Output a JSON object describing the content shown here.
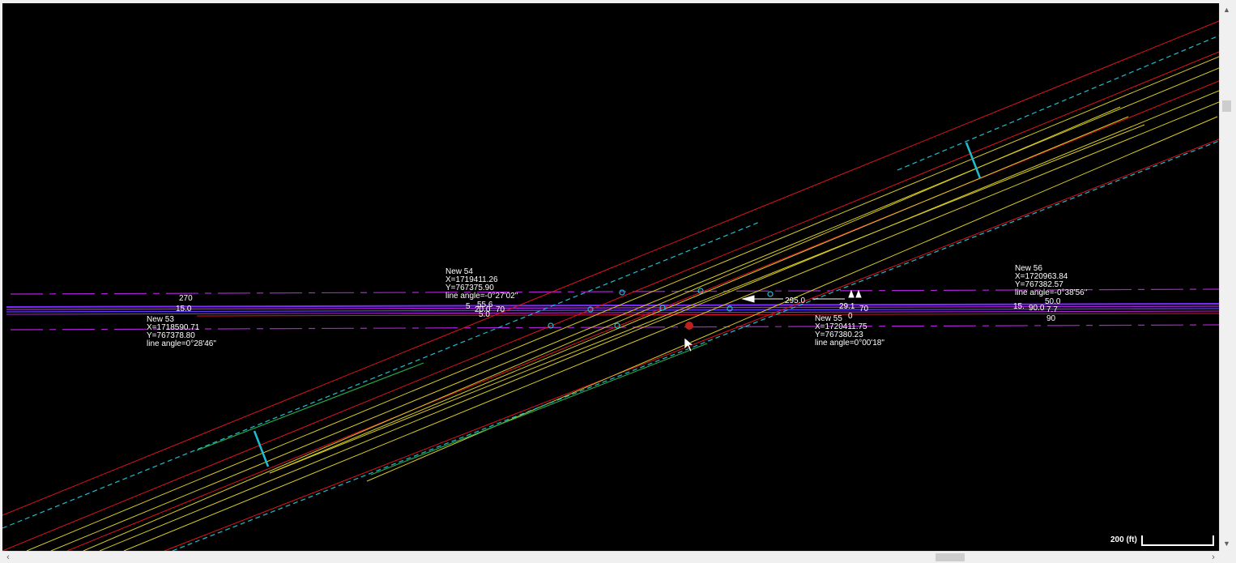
{
  "view": {
    "scale_bar_label": "200 (ft)",
    "dim_label_distance": "295.0"
  },
  "points": [
    {
      "name": "New 53",
      "x": "X=1718590.71",
      "y": "Y=767378.80",
      "angle": "line angle=0°28'46\""
    },
    {
      "name": "New 54",
      "x": "X=1719411.26",
      "y": "Y=767375.90",
      "angle": "line angle=-0°27'02\""
    },
    {
      "name": "New 55",
      "x": "X=1720411.75",
      "y": "Y=767380.23",
      "angle": "line angle=0°00'18\""
    },
    {
      "name": "New 56",
      "x": "X=1720963.84",
      "y": "Y=767382.57",
      "angle": "line angle=-0°38'56\""
    }
  ],
  "dim_labels": {
    "left_a": "270",
    "left_b": "15.0",
    "mid_a": "5",
    "mid_b": "55.6",
    "mid_c": "20.0",
    "mid_d": "70",
    "mid_e": "5.0",
    "r_a": "29.1",
    "r_b": "70",
    "r_c": "0",
    "far_a": "50.0",
    "far_b": "90.0",
    "far_c": "7.7",
    "far_d": "90",
    "far_e": "15."
  },
  "colors": {
    "background": "#000000",
    "boundary": "#e0141e",
    "lane": "#d8cc22",
    "offset": "#1fbcd0",
    "crossroad": "#b020d8",
    "crossroad_center": "#5a3cff",
    "green": "#22b04a"
  },
  "icons": [
    "cursor-arrow-icon",
    "scroll-up-icon",
    "scroll-down-icon",
    "scroll-left-icon",
    "scroll-right-icon"
  ]
}
